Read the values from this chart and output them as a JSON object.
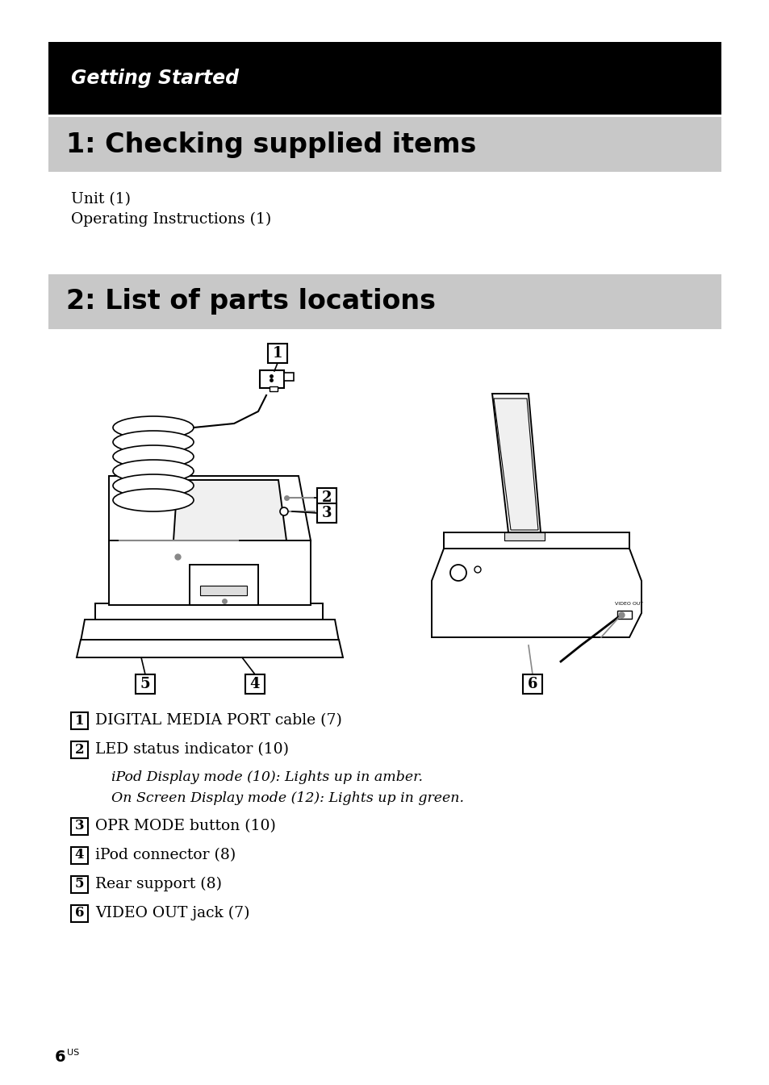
{
  "page_bg": "#ffffff",
  "header_bg": "#000000",
  "header_text": "Getting Started",
  "header_text_color": "#ffffff",
  "section1_bg": "#c8c8c8",
  "section1_title": "1: Checking supplied items",
  "section2_bg": "#c8c8c8",
  "section2_title": "2: List of parts locations",
  "body_text_color": "#000000",
  "items": [
    "Unit (1)",
    "Operating Instructions (1)"
  ],
  "parts": [
    {
      "num": "1",
      "desc": "DIGITAL MEDIA PORT cable (7)"
    },
    {
      "num": "2",
      "desc": "LED status indicator (10)"
    },
    {
      "num": "3",
      "desc": "OPR MODE button (10)"
    },
    {
      "num": "4",
      "desc": "iPod connector (8)"
    },
    {
      "num": "5",
      "desc": "Rear support (8)"
    },
    {
      "num": "6",
      "desc": "VIDEO OUT jack (7)"
    }
  ],
  "sub_items": [
    "iPod Display mode (10): Lights up in amber.",
    "On Screen Display mode (12): Lights up in green."
  ],
  "page_number": "6",
  "page_suffix": "US"
}
